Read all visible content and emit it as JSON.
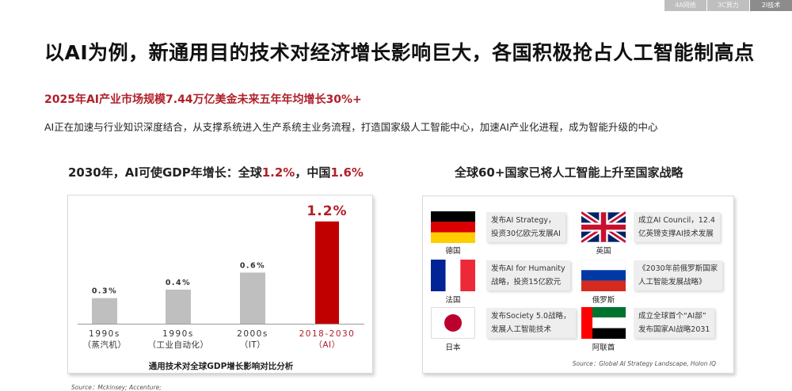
{
  "tabs": [
    {
      "label": "4A网络",
      "active": false
    },
    {
      "label": "3C算力",
      "active": false
    },
    {
      "label": "2I技术",
      "active": true
    }
  ],
  "title": "以AI为例，新通用目的技术对经济增长影响巨大，各国积极抢占人工智能制高点",
  "subtitle": "2025年AI产业市场规模7.44万亿美金未来五年年均增长30%+",
  "description": "AI正在加速与行业知识深度结合，从支撑系统进入生产系统主业务流程，打造国家级人工智能中心，加速AI产业化进程，成为智能升级的中心",
  "left_section": {
    "heading_prefix": "2030年，AI可使GDP年增长：全球",
    "heading_global": "1.2%",
    "heading_mid": "，中国",
    "heading_china": "1.6%"
  },
  "chart_data": {
    "type": "bar",
    "title": "通用技术对全球GDP增长影响对比分析",
    "categories": [
      "1990s\n（蒸汽机）",
      "1990s\n（工业自动化）",
      "2000s\n（IT）",
      "2018-2030\n（AI）"
    ],
    "category_lines": [
      [
        "1990s",
        "（蒸汽机）"
      ],
      [
        "1990s",
        "（工业自动化）"
      ],
      [
        "2000s",
        "（IT）"
      ],
      [
        "2018-2030",
        "（AI）"
      ]
    ],
    "values": [
      0.3,
      0.4,
      0.6,
      1.2
    ],
    "data_labels": [
      "0.3%",
      "0.4%",
      "0.6%",
      "1.2%"
    ],
    "ylim": [
      0,
      1.3
    ],
    "colors": [
      "#bfbfbf",
      "#bfbfbf",
      "#bfbfbf",
      "#c00000"
    ],
    "label_colors": [
      "#333333",
      "#333333",
      "#333333",
      "#b0202a"
    ],
    "highlight_index": 3,
    "grid": false
  },
  "right_section": {
    "heading": "全球60+国家已将人工智能上升至国家战略",
    "source": "Source：Global AI Strategy Landscape, Holon IQ",
    "countries": [
      {
        "name": "德国",
        "flag": "germany-flag",
        "note_lines": [
          "发布AI Strategy，",
          "投资30亿欧元发展AI"
        ]
      },
      {
        "name": "英国",
        "flag": "uk-flag",
        "note_lines": [
          "成立AI Council，12.4",
          "亿英镑支撑AI技术发展"
        ]
      },
      {
        "name": "法国",
        "flag": "france-flag",
        "note_lines": [
          "发布AI for Humanity",
          "战略，投资15亿欧元"
        ]
      },
      {
        "name": "俄罗斯",
        "flag": "russia-flag",
        "note_lines": [
          "《2030年前俄罗斯国家",
          "人工智能发展战略》"
        ]
      },
      {
        "name": "日本",
        "flag": "japan-flag",
        "note_lines": [
          "发布Society 5.0战略，",
          "发展人工智能技术"
        ]
      },
      {
        "name": "阿联酋",
        "flag": "uae-flag",
        "note_lines": [
          "成立全球首个“AI部”",
          "发布国家AI战略2031"
        ]
      }
    ]
  },
  "source_bottom": "Source：Mckinsey; Accenture;"
}
